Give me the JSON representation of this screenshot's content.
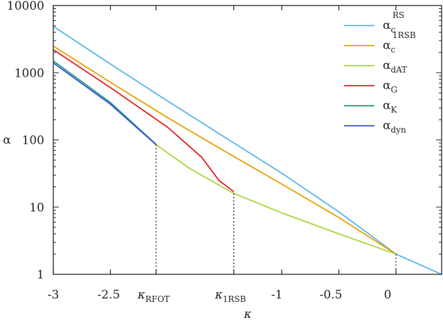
{
  "chart_data": {
    "type": "line",
    "title": "",
    "xlabel": "κ",
    "ylabel": "α",
    "xlim": [
      -3,
      0.4
    ],
    "ylim": [
      1,
      10000
    ],
    "yscale": "log",
    "grid": false,
    "legend_position": "top-right",
    "x_ticks": [
      {
        "value": -3,
        "label": "-3"
      },
      {
        "value": -2.5,
        "label": "-2.5"
      },
      {
        "value": -2.1,
        "label": "κ",
        "sub": "RFOT"
      },
      {
        "value": -1.42,
        "label": "κ",
        "sub": "1RSB"
      },
      {
        "value": -1,
        "label": "-1"
      },
      {
        "value": -0.5,
        "label": "-0.5"
      },
      {
        "value": 0,
        "label": "0"
      }
    ],
    "y_ticks": [
      {
        "value": 1,
        "label": "1"
      },
      {
        "value": 10,
        "label": "10"
      },
      {
        "value": 100,
        "label": "100"
      },
      {
        "value": 1000,
        "label": "1000"
      },
      {
        "value": 10000,
        "label": "10000"
      }
    ],
    "vlines": [
      {
        "x": -2.1,
        "y_top": 85,
        "style": "dotted"
      },
      {
        "x": -1.42,
        "y_top": 16,
        "style": "dotted"
      },
      {
        "x": 0,
        "y_top": 2,
        "style": "dotted"
      }
    ],
    "series": [
      {
        "name": "α_c^RS",
        "label": "α",
        "sub": "c",
        "sup": "RS",
        "color": "#56b4e9",
        "x": [
          -3,
          -2.5,
          -2,
          -1.5,
          -1,
          -0.5,
          0,
          0.4
        ],
        "y": [
          4900,
          1350,
          380,
          110,
          32,
          8.5,
          2.0,
          1.0
        ]
      },
      {
        "name": "α_c^1RSB",
        "label": "α",
        "sub": "c",
        "sup": "1RSB",
        "color": "#e69f00",
        "x": [
          -3,
          -2.5,
          -2,
          -1.5,
          -1,
          -0.5,
          0
        ],
        "y": [
          2500,
          720,
          215,
          68,
          22,
          7.0,
          2.0
        ]
      },
      {
        "name": "α_dAT",
        "label": "α",
        "sub": "dAT",
        "sup": "",
        "color": "#a6d53a",
        "x": [
          -2.1,
          -1.8,
          -1.42,
          -1,
          -0.5,
          0
        ],
        "y": [
          85,
          37,
          16,
          8.2,
          4.0,
          2.0
        ]
      },
      {
        "name": "α_G",
        "label": "α",
        "sub": "G",
        "sup": "",
        "color": "#e41a1c",
        "x": [
          -3,
          -2.5,
          -2,
          -1.7,
          -1.55,
          -1.42
        ],
        "y": [
          2200,
          600,
          155,
          55,
          25,
          17
        ]
      },
      {
        "name": "α_K",
        "label": "α",
        "sub": "K",
        "sup": "",
        "color": "#1b9e77",
        "x": [
          -3,
          -2.5,
          -2.1
        ],
        "y": [
          1500,
          360,
          86
        ]
      },
      {
        "name": "α_dyn",
        "label": "α",
        "sub": "dyn",
        "sup": "",
        "color": "#3a4fd6",
        "x": [
          -3,
          -2.5,
          -2.1
        ],
        "y": [
          1400,
          340,
          85
        ]
      }
    ]
  }
}
